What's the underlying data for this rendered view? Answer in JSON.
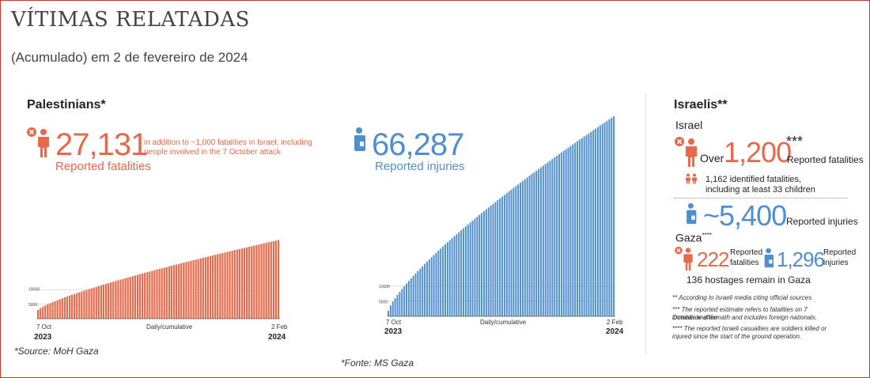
{
  "header": {
    "title": "VÍTIMAS RELATADAS",
    "subtitle": "(Acumulado) em 2 de fevereiro de 2024"
  },
  "palestinians": {
    "heading": "Palestinians*",
    "fatalities_value": "27,131",
    "fatalities_label": "Reported fatalities",
    "fatalities_note_1": "in addition to ~1,000 fatalities in Israel, including",
    "fatalities_note_2": "people involved in the 7 October attack",
    "injuries_value": "66,287",
    "injuries_label": "Reported injuries",
    "source": "*Source: MoH Gaza"
  },
  "israelis": {
    "heading": "Israelis**",
    "israel_label": "Israel",
    "over": "Over",
    "fatalities_value": "1,200",
    "fatalities_stars": "***",
    "fatalities_label": "Reported fatalities",
    "identified_1": "1,162 identified fatalities,",
    "identified_2": "including at least 33 children",
    "injuries_value": "~5,400",
    "injuries_label": "Reported injuries",
    "gaza_label": "Gaza",
    "gaza_stars": "****",
    "gaza_fatalities_value": "222",
    "gaza_fatalities_label_1": "Reported",
    "gaza_fatalities_label_2": "fatalities",
    "gaza_injuries_value": "1,296",
    "gaza_injuries_label_1": "Reported",
    "gaza_injuries_label_2": "injuries",
    "hostages": "136 hostages remain in Gaza",
    "footnote_1": "** According to Israeli media citing official sources",
    "footnote_2a": "*** The reported estimate refers to fatalities on 7 October and the",
    "footnote_2b": "immediate aftermath and includes foreign nationals.",
    "footnote_3a": "**** The reported Israeli casualties are soldiers killed or",
    "footnote_3b": "injured since the start of the ground operation."
  },
  "footer_source": "*Fonte: MS Gaza",
  "colors": {
    "red": "#e8684a",
    "blue": "#4f8fd0",
    "border": "#c0392b"
  },
  "icons": {
    "fatality": "person-with-x-icon",
    "injury": "injured-person-icon",
    "children": "two-children-icon"
  },
  "chart_data": [
    {
      "type": "bar",
      "series": [
        {
          "values": [
            3000,
            27131
          ]
        }
      ],
      "x_start": "7 Oct 2023",
      "x_end": "2 Feb 2024",
      "xlabel": "Daily/cumulative",
      "x_start_tick": "7 Oct",
      "x_start_year": "2023",
      "x_end_tick": "2 Feb",
      "x_end_year": "2024",
      "y_ticks": [
        "5000",
        "10000"
      ],
      "ylim": [
        0,
        66287
      ],
      "bar_count": 100,
      "color": "#e8684a"
    },
    {
      "type": "bar",
      "series": [
        {
          "values": [
            1800,
            66287
          ]
        }
      ],
      "x_start": "7 Oct 2023",
      "x_end": "2 Feb 2024",
      "xlabel": "Daily/cumulative",
      "x_start_tick": "7 Oct",
      "x_start_year": "2023",
      "x_end_tick": "2 Feb",
      "x_end_year": "2024",
      "y_ticks": [
        "5000",
        "10000"
      ],
      "ylim": [
        0,
        66287
      ],
      "bar_count": 100,
      "color": "#4f8fd0"
    }
  ]
}
